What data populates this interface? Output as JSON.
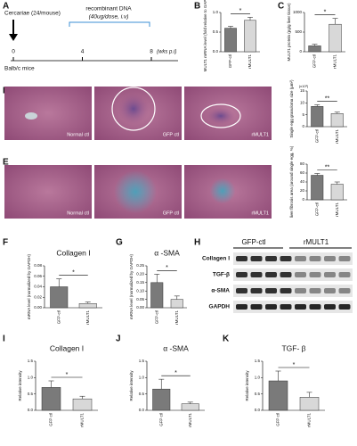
{
  "panel_labels": [
    "A",
    "B",
    "C",
    "D",
    "E",
    "F",
    "G",
    "H",
    "I",
    "J",
    "K"
  ],
  "timeline": {
    "infection": "Cercariae (24/mouse)",
    "treatment": "recombinant  DNA",
    "dose": "(40ug/dose, i.v)",
    "weeks": [
      0,
      4,
      8
    ],
    "unit": "(wks p.i)",
    "host": "Balb/c mice"
  },
  "histology": {
    "D": [
      "Normal ctl",
      "GFP ctl",
      "rMULT1"
    ],
    "E": [
      "Normal ctl",
      "GFP ctl",
      "rMULT1"
    ]
  },
  "blot": {
    "groups": [
      "GFP-ctl",
      "rMULT1"
    ],
    "rows": [
      "Collagen I",
      "TGF-β",
      "α-SMA",
      "GAPDH"
    ]
  },
  "chart_data": [
    {
      "type": "bar",
      "ylabel": "MULT1 mRNA level (fold relative to GAPDH)",
      "categories": [
        "GFP-ctl",
        "rMULT1"
      ],
      "values": [
        0.6,
        0.8
      ],
      "errors": [
        0.05,
        0.08
      ],
      "colors": [
        "#7a7a7a",
        "#d8d8d8"
      ],
      "ylim": [
        0,
        1
      ],
      "yticks": [
        {
          "value": 0,
          "label": "0.0"
        },
        {
          "value": 0.5,
          "label": "0.5"
        },
        {
          "value": 1,
          "label": "1.0"
        }
      ],
      "significance": "*"
    },
    {
      "type": "bar",
      "ylabel": "MULT1 protein (pg/g liver tissue)",
      "categories": [
        "GFP-ctl",
        "rMULT1"
      ],
      "values": [
        150,
        700
      ],
      "errors": [
        40,
        150
      ],
      "colors": [
        "#7a7a7a",
        "#d8d8d8"
      ],
      "ylim": [
        0,
        1000
      ],
      "yticks": [
        0,
        500,
        1000
      ],
      "significance": "*"
    },
    {
      "type": "bar",
      "ylabel": "Single egg granuloma size (μm²)",
      "ylabel2": "(x10³)",
      "categories": [
        "GFP-ctl",
        "rMULT1"
      ],
      "values": [
        8.5,
        5.5
      ],
      "errors": [
        0.7,
        0.6
      ],
      "colors": [
        "#7a7a7a",
        "#d8d8d8"
      ],
      "ylim": [
        0,
        15
      ],
      "yticks": [
        0,
        5,
        10,
        15
      ],
      "significance": "**"
    },
    {
      "type": "bar",
      "ylabel": "liver fibrosis area (around single egg, %)",
      "categories": [
        "GFP-ctl",
        "rMULT1"
      ],
      "values": [
        55,
        35
      ],
      "errors": [
        4,
        5
      ],
      "colors": [
        "#7a7a7a",
        "#d8d8d8"
      ],
      "ylim": [
        0,
        80
      ],
      "yticks": [
        0,
        20,
        40,
        60,
        80
      ],
      "significance": "**"
    },
    {
      "type": "bar",
      "title": "Collagen I",
      "ylabel": "mRNA level (normalized by GAPDH)",
      "categories": [
        "GFP-ctl",
        "rMULT1"
      ],
      "values": [
        0.04,
        0.008
      ],
      "errors": [
        0.015,
        0.003
      ],
      "colors": [
        "#7a7a7a",
        "#d8d8d8"
      ],
      "ylim": [
        0,
        0.08
      ],
      "yticks": [
        {
          "value": 0,
          "label": "0.00"
        },
        {
          "value": 0.02,
          "label": "0.02"
        },
        {
          "value": 0.04,
          "label": "0.04"
        },
        {
          "value": 0.06,
          "label": "0.06"
        },
        {
          "value": 0.08,
          "label": "0.08"
        }
      ],
      "significance": "*"
    },
    {
      "type": "bar",
      "title": "α -SMA",
      "ylabel": "mRNA level (normalized by GAPDH)",
      "categories": [
        "GFP-ctl",
        "rMULT1"
      ],
      "values": [
        0.15,
        0.05
      ],
      "errors": [
        0.05,
        0.02
      ],
      "colors": [
        "#7a7a7a",
        "#d8d8d8"
      ],
      "ylim": [
        0,
        0.25
      ],
      "yticks": [
        {
          "value": 0,
          "label": "0.00"
        },
        {
          "value": 0.05,
          "label": "0.05"
        },
        {
          "value": 0.1,
          "label": "0.10"
        },
        {
          "value": 0.15,
          "label": "0.15"
        },
        {
          "value": 0.2,
          "label": "0.20"
        },
        {
          "value": 0.25,
          "label": "0.25"
        }
      ],
      "significance": "*"
    },
    {
      "type": "bar",
      "title": "Collagen I",
      "ylabel": "Relative intensity",
      "categories": [
        "GFP ctl",
        "rMULT1"
      ],
      "values": [
        0.7,
        0.35
      ],
      "errors": [
        0.2,
        0.08
      ],
      "colors": [
        "#7a7a7a",
        "#d8d8d8"
      ],
      "ylim": [
        0,
        1.5
      ],
      "yticks": [
        {
          "value": 0,
          "label": "0.0"
        },
        {
          "value": 0.5,
          "label": "0.5"
        },
        {
          "value": 1,
          "label": "1.0"
        },
        {
          "value": 1.5,
          "label": "1.5"
        }
      ],
      "significance": "*"
    },
    {
      "type": "bar",
      "title": "α -SMA",
      "ylabel": "Relative intensity",
      "categories": [
        "GFP ctl",
        "rMULT1"
      ],
      "values": [
        0.65,
        0.2
      ],
      "errors": [
        0.3,
        0.05
      ],
      "colors": [
        "#7a7a7a",
        "#d8d8d8"
      ],
      "ylim": [
        0,
        1.5
      ],
      "yticks": [
        {
          "value": 0,
          "label": "0.0"
        },
        {
          "value": 0.5,
          "label": "0.5"
        },
        {
          "value": 1,
          "label": "1.0"
        },
        {
          "value": 1.5,
          "label": "1.5"
        }
      ],
      "significance": "*"
    },
    {
      "type": "bar",
      "title": "TGF- β",
      "ylabel": "Relative intensity",
      "categories": [
        "GFP ctl",
        "rMULT1"
      ],
      "values": [
        0.9,
        0.4
      ],
      "errors": [
        0.3,
        0.15
      ],
      "colors": [
        "#7a7a7a",
        "#d8d8d8"
      ],
      "ylim": [
        0,
        1.5
      ],
      "yticks": [
        {
          "value": 0,
          "label": "0.0"
        },
        {
          "value": 0.5,
          "label": "0.5"
        },
        {
          "value": 1,
          "label": "1.0"
        },
        {
          "value": 1.5,
          "label": "1.5"
        }
      ],
      "significance": "*"
    }
  ]
}
